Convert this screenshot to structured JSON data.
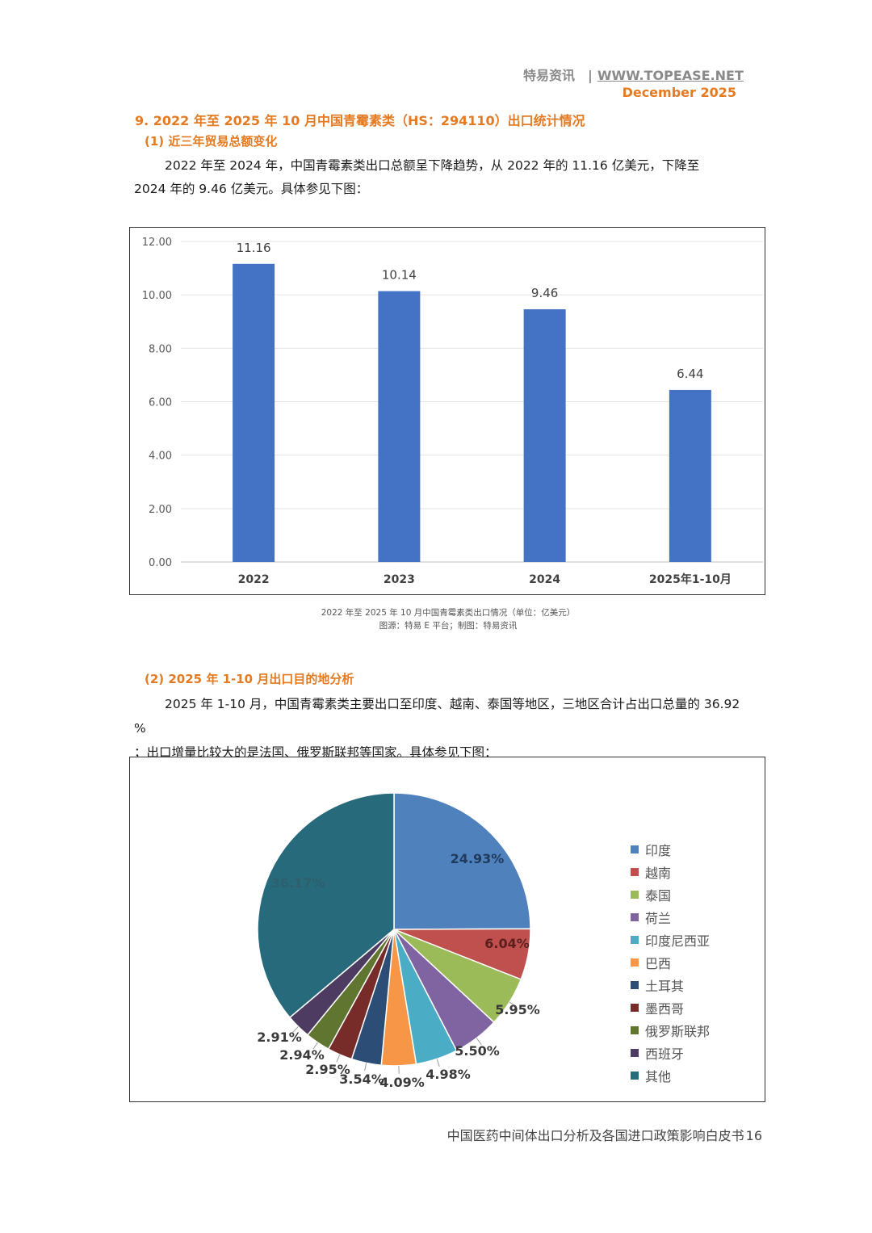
{
  "header": {
    "brand": "特易资讯",
    "separator": "|",
    "url": "WWW.TOPEASE.NET",
    "date": "December 2025"
  },
  "section_title": "9. 2022 年至 2025 年 10 月中国青霉素类（HS：294110）出口统计情况",
  "subsection1": {
    "title": "(1) 近三年贸易总额变化",
    "paragraph_line1": "2022 年至 2024 年，中国青霉素类出口总额呈下降趋势，从 2022 年的 11.16 亿美元，下降至",
    "paragraph_line2": "2024 年的 9.46 亿美元。具体参见下图："
  },
  "bar_caption": {
    "line1": "2022 年至 2025 年 10 月中国青霉素类出口情况（单位：亿美元）",
    "line2": "图源：特易 E 平台；制图：特易资讯"
  },
  "subsection2": {
    "title": "(2) 2025 年 1-10 月出口目的地分析",
    "paragraph_line1": "2025 年 1-10 月，中国青霉素类主要出口至印度、越南、泰国等地区，三地区合计占出口总量的 36.92 %",
    "paragraph_line2": "；出口增量比较大的是法国、俄罗斯联邦等国家。具体参见下图："
  },
  "chart_data": [
    {
      "type": "bar",
      "categories": [
        "2022",
        "2023",
        "2024",
        "2025年1-10月"
      ],
      "values": [
        11.16,
        10.14,
        9.46,
        6.44
      ],
      "value_labels": [
        "11.16",
        "10.14",
        "9.46",
        "6.44"
      ],
      "yticks": [
        "0.00",
        "2.00",
        "4.00",
        "6.00",
        "8.00",
        "10.00",
        "12.00"
      ],
      "ylim": [
        0,
        12
      ],
      "grid": true,
      "color": "#4472c4"
    },
    {
      "type": "pie",
      "labels": [
        "印度",
        "越南",
        "泰国",
        "荷兰",
        "印度尼西亚",
        "巴西",
        "土耳其",
        "墨西哥",
        "俄罗斯联邦",
        "西班牙",
        "其他"
      ],
      "values": [
        24.93,
        6.04,
        5.95,
        5.5,
        4.98,
        4.09,
        3.54,
        2.95,
        2.94,
        2.91,
        36.17
      ],
      "value_labels": [
        "24.93%",
        "6.04%",
        "5.95%",
        "5.50%",
        "4.98%",
        "4.09%",
        "3.54%",
        "2.95%",
        "2.94%",
        "2.91%",
        "36.17%"
      ],
      "colors": [
        "#4f81bd",
        "#c0504d",
        "#9bbb59",
        "#8064a2",
        "#4bacc6",
        "#f79646",
        "#2c4d75",
        "#772c2a",
        "#5f7530",
        "#4d3b62",
        "#276a7c"
      ],
      "legend": "right"
    }
  ],
  "footer": {
    "title": "中国医药中间体出口分析及各国进口政策影响白皮书",
    "page": "16"
  }
}
